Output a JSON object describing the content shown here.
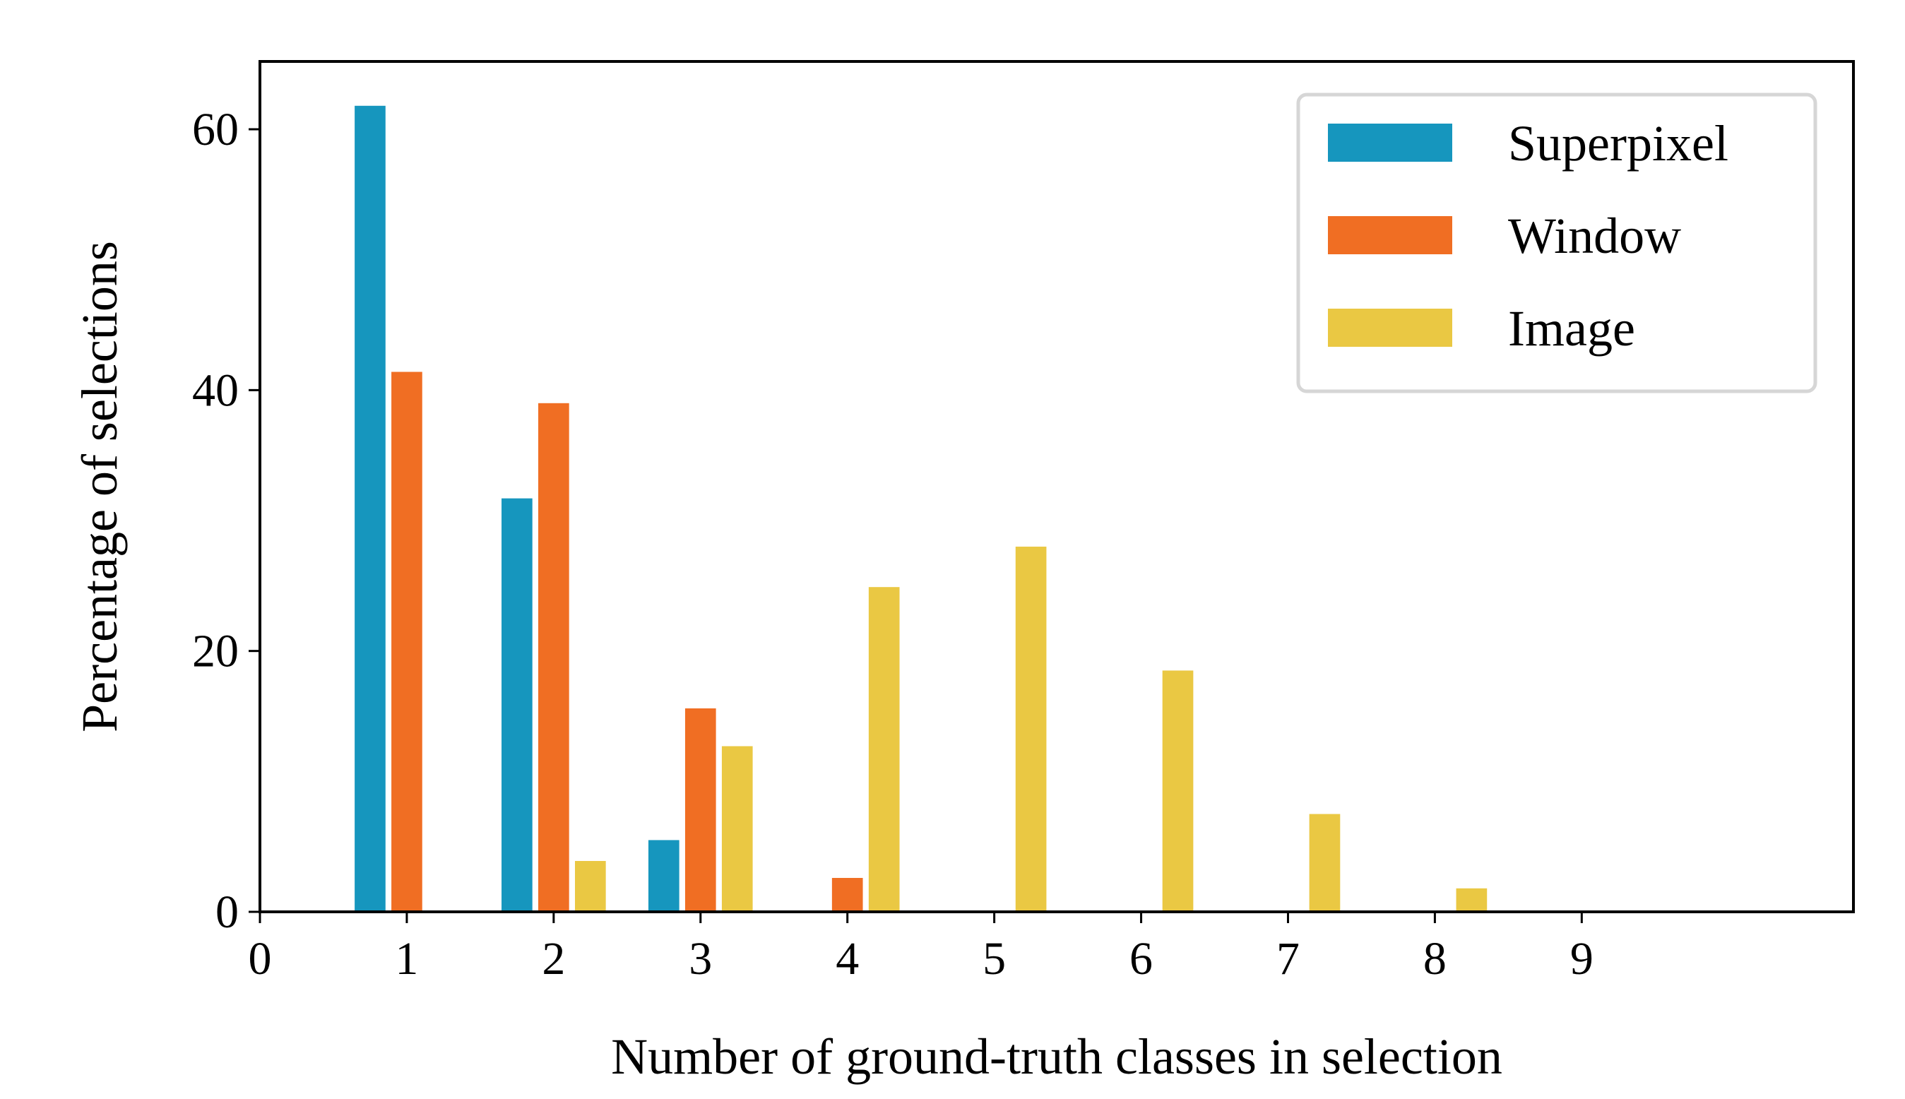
{
  "chart_data": {
    "type": "bar",
    "xlabel": "Number of ground-truth classes in selection",
    "ylabel": "Percentage of selections",
    "x_ticks": [
      0,
      1,
      2,
      3,
      4,
      5,
      6,
      7,
      8,
      9
    ],
    "x_tick_labels": [
      "0",
      "1",
      "2",
      "3",
      "4",
      "5",
      "6",
      "7",
      "8",
      "9"
    ],
    "y_ticks": [
      0,
      20,
      40,
      60
    ],
    "y_tick_labels": [
      "0",
      "20",
      "40",
      "60"
    ],
    "xlim": [
      0,
      10.85
    ],
    "ylim": [
      0,
      65.2
    ],
    "grid": false,
    "legend_position": "top-right",
    "series": [
      {
        "name": "Superpixel",
        "color": "#1696BE",
        "x": [
          1,
          2,
          3
        ],
        "values": [
          61.8,
          31.7,
          5.5
        ]
      },
      {
        "name": "Window",
        "color": "#F06E23",
        "x": [
          1,
          2,
          3,
          4
        ],
        "values": [
          41.4,
          39.0,
          15.6,
          2.6
        ]
      },
      {
        "name": "Image",
        "color": "#EAC843",
        "x": [
          2,
          3,
          4,
          5,
          6,
          7,
          8
        ],
        "values": [
          3.9,
          12.7,
          24.9,
          28.0,
          18.5,
          7.5,
          1.8
        ]
      }
    ]
  }
}
